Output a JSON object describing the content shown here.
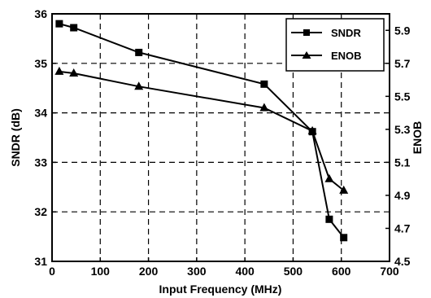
{
  "chart_data": {
    "type": "line",
    "xlabel": "Input Frequency (MHz)",
    "ylabel": "SNDR (dB)",
    "y2label": "ENOB",
    "xlim": [
      0,
      700
    ],
    "ylim": [
      31,
      36
    ],
    "y2lim": [
      4.5,
      6.0
    ],
    "x_ticks": [
      0,
      100,
      200,
      300,
      400,
      500,
      600,
      700
    ],
    "y_ticks": [
      31,
      32,
      33,
      34,
      35,
      36
    ],
    "y2_ticks": [
      4.5,
      4.7,
      4.9,
      5.1,
      5.3,
      5.5,
      5.7,
      5.9
    ],
    "x_tick_labels": [
      "0",
      "100",
      "200",
      "300",
      "400",
      "500",
      "600",
      "700"
    ],
    "y_tick_labels": [
      "31",
      "32",
      "33",
      "34",
      "35",
      "36"
    ],
    "y2_tick_labels": [
      "4.5",
      "4.7",
      "4.9",
      "5.1",
      "5.3",
      "5.5",
      "5.7",
      "5.9"
    ],
    "grid": true,
    "legend_position": "top-right",
    "series": [
      {
        "name": "SNDR",
        "axis": "left",
        "marker": "square",
        "x": [
          15,
          45,
          180,
          440,
          540,
          575,
          605
        ],
        "y": [
          35.8,
          35.72,
          35.22,
          34.58,
          33.62,
          31.85,
          31.48
        ]
      },
      {
        "name": "ENOB",
        "axis": "right",
        "marker": "triangle",
        "x": [
          15,
          45,
          180,
          440,
          540,
          575,
          605
        ],
        "y": [
          5.65,
          5.64,
          5.56,
          5.43,
          5.29,
          5.0,
          4.93
        ]
      }
    ]
  }
}
